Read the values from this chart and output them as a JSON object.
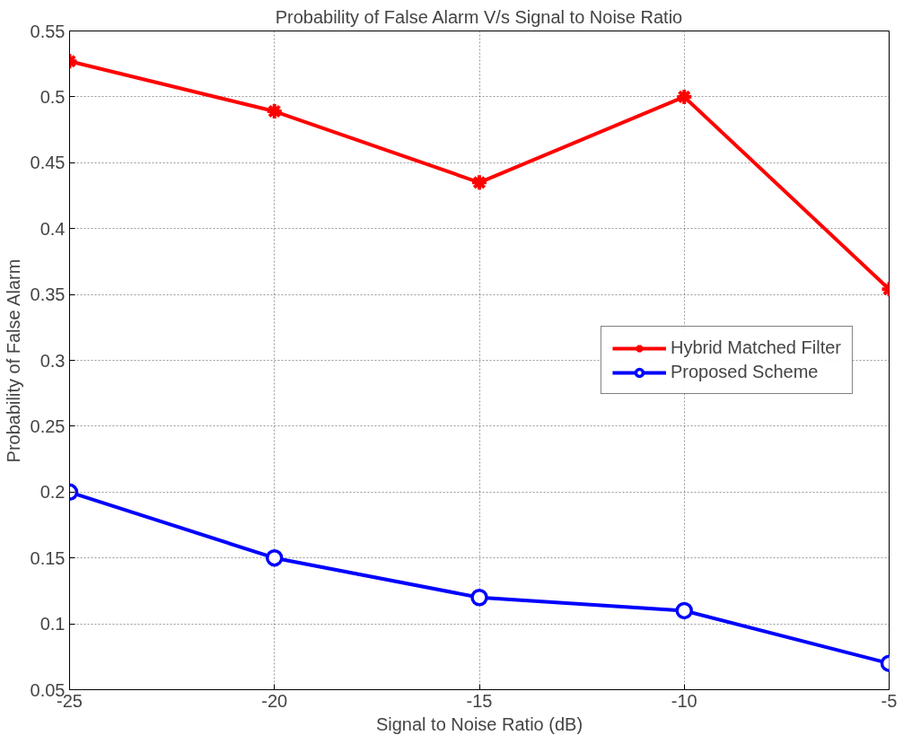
{
  "chart_data": {
    "type": "line",
    "title": "Probability of False Alarm V/s Signal to Noise Ratio",
    "xlabel": "Signal to Noise Ratio (dB)",
    "ylabel": "Probability of False Alarm",
    "x": [
      -25,
      -20,
      -15,
      -10,
      -5
    ],
    "series": [
      {
        "name": "Hybrid Matched Filter",
        "color": "#ff0000",
        "marker": "cross",
        "values": [
          0.527,
          0.489,
          0.435,
          0.5,
          0.354
        ]
      },
      {
        "name": "Proposed Scheme",
        "color": "#0000ff",
        "marker": "circle",
        "values": [
          0.2,
          0.15,
          0.12,
          0.11,
          0.07
        ]
      }
    ],
    "xlim": [
      -25,
      -5
    ],
    "ylim": [
      0.05,
      0.55
    ],
    "xticks": [
      -25,
      -20,
      -15,
      -10,
      -5
    ],
    "yticks": [
      0.05,
      0.1,
      0.15,
      0.2,
      0.25,
      0.3,
      0.35,
      0.4,
      0.45,
      0.5,
      0.55
    ],
    "grid": true,
    "legend": "right",
    "line_style": "solid"
  }
}
